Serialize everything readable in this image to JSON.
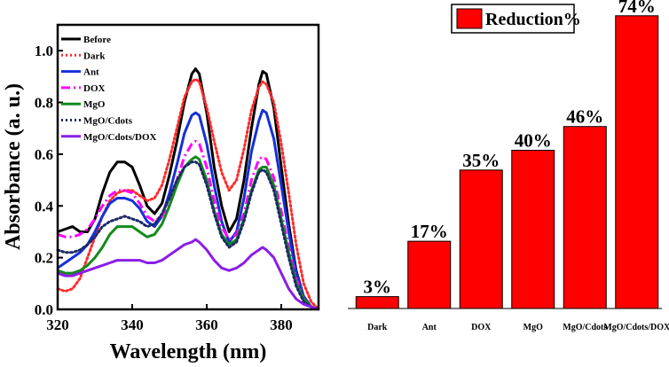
{
  "chart_data": [
    {
      "type": "line",
      "title": "",
      "xlabel": "Wavelength (nm)",
      "ylabel": "Absorbance (a. u.)",
      "xlim": [
        320,
        390
      ],
      "ylim": [
        0.0,
        1.1
      ],
      "xticks": [
        320,
        340,
        360,
        380
      ],
      "yticks": [
        0.0,
        0.2,
        0.4,
        0.6,
        0.8,
        1.0
      ],
      "xtick_labels": [
        "320",
        "340",
        "360",
        "380"
      ],
      "ytick_labels": [
        "0.0",
        "0.2",
        "0.4",
        "0.6",
        "0.8",
        "1.0"
      ],
      "legend_position": "top-left",
      "x": [
        320,
        322,
        324,
        326,
        328,
        330,
        332,
        334,
        336,
        338,
        340,
        342,
        344,
        346,
        348,
        350,
        352,
        354,
        356,
        357,
        358,
        360,
        362,
        364,
        366,
        368,
        370,
        372,
        374,
        375,
        376,
        378,
        380,
        382,
        384,
        386,
        388,
        390
      ],
      "series": [
        {
          "name": "Before",
          "color": "#000000",
          "dash": "solid",
          "values": [
            0.3,
            0.31,
            0.32,
            0.3,
            0.3,
            0.35,
            0.45,
            0.53,
            0.57,
            0.57,
            0.55,
            0.48,
            0.4,
            0.37,
            0.41,
            0.52,
            0.65,
            0.8,
            0.91,
            0.93,
            0.91,
            0.76,
            0.55,
            0.4,
            0.3,
            0.35,
            0.5,
            0.7,
            0.87,
            0.92,
            0.91,
            0.78,
            0.55,
            0.33,
            0.15,
            0.05,
            0.01,
            0.0
          ]
        },
        {
          "name": "Dark",
          "color": "#ff2a2a",
          "dash": "dotted",
          "values": [
            0.08,
            0.07,
            0.08,
            0.12,
            0.2,
            0.28,
            0.36,
            0.42,
            0.45,
            0.46,
            0.46,
            0.44,
            0.42,
            0.43,
            0.48,
            0.58,
            0.7,
            0.82,
            0.88,
            0.89,
            0.88,
            0.78,
            0.65,
            0.53,
            0.46,
            0.5,
            0.62,
            0.77,
            0.86,
            0.88,
            0.87,
            0.8,
            0.64,
            0.45,
            0.25,
            0.1,
            0.03,
            0.0
          ]
        },
        {
          "name": "Ant",
          "color": "#1530d8",
          "dash": "solid",
          "values": [
            0.16,
            0.18,
            0.2,
            0.22,
            0.25,
            0.3,
            0.36,
            0.41,
            0.43,
            0.43,
            0.42,
            0.39,
            0.34,
            0.32,
            0.36,
            0.45,
            0.56,
            0.68,
            0.75,
            0.76,
            0.75,
            0.64,
            0.48,
            0.34,
            0.26,
            0.3,
            0.43,
            0.61,
            0.73,
            0.77,
            0.76,
            0.66,
            0.48,
            0.3,
            0.14,
            0.05,
            0.01,
            0.0
          ]
        },
        {
          "name": "DOX",
          "color": "#ff00ff",
          "dash": "dashdot",
          "values": [
            0.29,
            0.28,
            0.28,
            0.29,
            0.31,
            0.35,
            0.4,
            0.44,
            0.46,
            0.46,
            0.45,
            0.41,
            0.36,
            0.34,
            0.36,
            0.42,
            0.5,
            0.59,
            0.64,
            0.65,
            0.64,
            0.55,
            0.42,
            0.32,
            0.27,
            0.29,
            0.37,
            0.5,
            0.58,
            0.59,
            0.58,
            0.51,
            0.38,
            0.24,
            0.12,
            0.04,
            0.01,
            0.0
          ]
        },
        {
          "name": "MgO",
          "color": "#138a1c",
          "dash": "solid",
          "values": [
            0.15,
            0.14,
            0.14,
            0.15,
            0.17,
            0.2,
            0.24,
            0.29,
            0.32,
            0.32,
            0.32,
            0.3,
            0.28,
            0.29,
            0.33,
            0.4,
            0.48,
            0.55,
            0.58,
            0.59,
            0.58,
            0.5,
            0.38,
            0.29,
            0.25,
            0.27,
            0.35,
            0.46,
            0.54,
            0.55,
            0.55,
            0.48,
            0.35,
            0.22,
            0.1,
            0.04,
            0.01,
            0.0
          ]
        },
        {
          "name": "MgO/Cdots",
          "color": "#1a2a66",
          "dash": "dotted",
          "values": [
            0.23,
            0.22,
            0.22,
            0.23,
            0.25,
            0.28,
            0.32,
            0.34,
            0.35,
            0.36,
            0.35,
            0.34,
            0.32,
            0.33,
            0.37,
            0.43,
            0.5,
            0.55,
            0.57,
            0.57,
            0.56,
            0.48,
            0.37,
            0.28,
            0.24,
            0.26,
            0.34,
            0.45,
            0.53,
            0.54,
            0.53,
            0.46,
            0.33,
            0.2,
            0.09,
            0.03,
            0.01,
            0.0
          ]
        },
        {
          "name": "MgO/Cdots/DOX",
          "color": "#8a1ee6",
          "dash": "solid",
          "values": [
            0.14,
            0.13,
            0.13,
            0.14,
            0.15,
            0.16,
            0.17,
            0.18,
            0.19,
            0.19,
            0.19,
            0.19,
            0.18,
            0.18,
            0.19,
            0.21,
            0.23,
            0.25,
            0.26,
            0.27,
            0.26,
            0.23,
            0.19,
            0.16,
            0.15,
            0.16,
            0.18,
            0.21,
            0.23,
            0.24,
            0.23,
            0.2,
            0.14,
            0.08,
            0.04,
            0.02,
            0.01,
            0.0
          ]
        }
      ]
    },
    {
      "type": "bar",
      "title": "",
      "xlabel": "",
      "ylabel": "",
      "categories": [
        "Dark",
        "Ant",
        "DOX",
        "MgO",
        "MgO/Cdots",
        "MgO/Cdots/DOX"
      ],
      "values": [
        3,
        17,
        35,
        40,
        46,
        74
      ],
      "value_labels": [
        "3%",
        "17%",
        "35%",
        "40%",
        "46%",
        "74%"
      ],
      "ylim": [
        0,
        80
      ],
      "color": "#ff0000",
      "legend": {
        "label": "Reduction%",
        "position": "top-left"
      }
    }
  ]
}
